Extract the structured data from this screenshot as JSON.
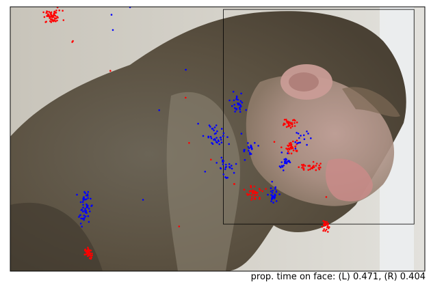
{
  "chart_data": {
    "type": "scatter",
    "title": "",
    "xlabel": "",
    "ylabel": "",
    "xlim": [
      0,
      1
    ],
    "ylim": [
      0,
      1
    ],
    "grid": false,
    "legend": "none",
    "background": "photograph of a macaque in profile (face to the right)",
    "face_box": {
      "x0": 0.514,
      "y0": 0.178,
      "x1": 0.974,
      "y1": 0.99
    },
    "colors": {
      "left": "#ff0000",
      "right": "#0000ff",
      "box": "#000000"
    },
    "series": [
      {
        "eye": "left",
        "color": "#ff0000",
        "clusters": [
          {
            "x": 0.102,
            "y": 0.962,
            "n": 60,
            "sx": 0.012,
            "sy": 0.012
          },
          {
            "x": 0.188,
            "y": 0.068,
            "n": 40,
            "sx": 0.004,
            "sy": 0.01
          },
          {
            "x": 0.59,
            "y": 0.295,
            "n": 35,
            "sx": 0.01,
            "sy": 0.014
          },
          {
            "x": 0.68,
            "y": 0.47,
            "n": 35,
            "sx": 0.008,
            "sy": 0.012
          },
          {
            "x": 0.676,
            "y": 0.562,
            "n": 30,
            "sx": 0.01,
            "sy": 0.01
          },
          {
            "x": 0.722,
            "y": 0.395,
            "n": 30,
            "sx": 0.013,
            "sy": 0.01
          },
          {
            "x": 0.76,
            "y": 0.172,
            "n": 25,
            "sx": 0.004,
            "sy": 0.012
          },
          {
            "x": 0.148,
            "y": 0.865,
            "n": 2,
            "sx": 0.004,
            "sy": 0.004
          },
          {
            "x": 0.422,
            "y": 0.655,
            "n": 1,
            "sx": 0.002,
            "sy": 0.002
          },
          {
            "x": 0.24,
            "y": 0.76,
            "n": 1,
            "sx": 0.002,
            "sy": 0.002
          },
          {
            "x": 0.432,
            "y": 0.488,
            "n": 1,
            "sx": 0.002,
            "sy": 0.002
          },
          {
            "x": 0.41,
            "y": 0.17,
            "n": 1,
            "sx": 0.002,
            "sy": 0.002
          },
          {
            "x": 0.48,
            "y": 0.42,
            "n": 1,
            "sx": 0.002,
            "sy": 0.002
          },
          {
            "x": 0.54,
            "y": 0.33,
            "n": 2,
            "sx": 0.004,
            "sy": 0.004
          },
          {
            "x": 0.76,
            "y": 0.28,
            "n": 1,
            "sx": 0.002,
            "sy": 0.002
          },
          {
            "x": 0.637,
            "y": 0.49,
            "n": 1,
            "sx": 0.002,
            "sy": 0.002
          }
        ]
      },
      {
        "eye": "right",
        "color": "#0000ff",
        "clusters": [
          {
            "x": 0.18,
            "y": 0.24,
            "n": 55,
            "sx": 0.007,
            "sy": 0.03
          },
          {
            "x": 0.548,
            "y": 0.63,
            "n": 30,
            "sx": 0.008,
            "sy": 0.018
          },
          {
            "x": 0.495,
            "y": 0.51,
            "n": 35,
            "sx": 0.012,
            "sy": 0.025
          },
          {
            "x": 0.52,
            "y": 0.4,
            "n": 25,
            "sx": 0.02,
            "sy": 0.018
          },
          {
            "x": 0.575,
            "y": 0.46,
            "n": 20,
            "sx": 0.008,
            "sy": 0.015
          },
          {
            "x": 0.634,
            "y": 0.285,
            "n": 30,
            "sx": 0.006,
            "sy": 0.018
          },
          {
            "x": 0.664,
            "y": 0.415,
            "n": 25,
            "sx": 0.01,
            "sy": 0.015
          },
          {
            "x": 0.7,
            "y": 0.5,
            "n": 15,
            "sx": 0.01,
            "sy": 0.015
          },
          {
            "x": 0.288,
            "y": 0.995,
            "n": 1,
            "sx": 0.002,
            "sy": 0.002
          },
          {
            "x": 0.243,
            "y": 0.97,
            "n": 1,
            "sx": 0.002,
            "sy": 0.002
          },
          {
            "x": 0.252,
            "y": 0.915,
            "n": 1,
            "sx": 0.002,
            "sy": 0.002
          },
          {
            "x": 0.422,
            "y": 0.76,
            "n": 1,
            "sx": 0.002,
            "sy": 0.002
          },
          {
            "x": 0.358,
            "y": 0.61,
            "n": 1,
            "sx": 0.002,
            "sy": 0.002
          },
          {
            "x": 0.315,
            "y": 0.27,
            "n": 1,
            "sx": 0.002,
            "sy": 0.002
          },
          {
            "x": 0.45,
            "y": 0.56,
            "n": 1,
            "sx": 0.002,
            "sy": 0.002
          },
          {
            "x": 0.56,
            "y": 0.52,
            "n": 1,
            "sx": 0.002,
            "sy": 0.002
          }
        ]
      }
    ],
    "annotation": "prop. time on face: (L) 0.471, (R) 0.404"
  }
}
